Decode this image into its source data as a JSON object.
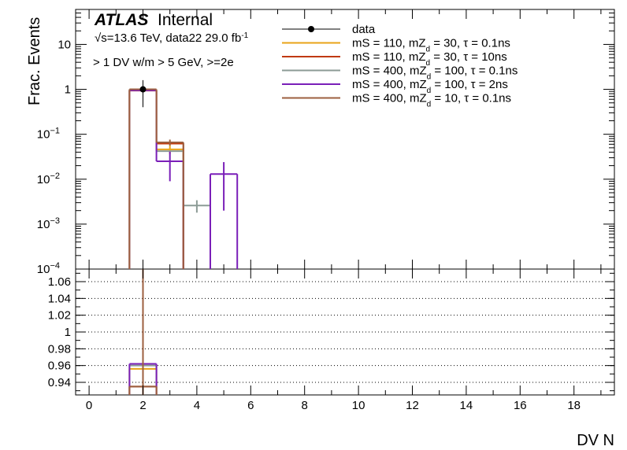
{
  "chart_data": {
    "type": "histogram",
    "atlas_label": "ATLAS",
    "atlas_sublabel": "Internal",
    "energy_label_prefix": "√s=13.6 TeV, data22 29.0 fb",
    "energy_label_sup": "-1",
    "selection_label": "> 1 DV w/m > 5 GeV, >=2e",
    "xlabel": "DV N",
    "ylabel": "Frac. Events",
    "xlim": [
      -0.5,
      19.5
    ],
    "x_ticks": [
      0,
      2,
      4,
      6,
      8,
      10,
      12,
      14,
      16,
      18
    ],
    "log_y": true,
    "ylim_top": [
      0.0001,
      60
    ],
    "y_ticks_top": [
      {
        "value": 10,
        "base": "10",
        "exp": ""
      },
      {
        "value": 1,
        "base": "1",
        "exp": ""
      },
      {
        "value": 0.1,
        "base": "10",
        "exp": "−1"
      },
      {
        "value": 0.01,
        "base": "10",
        "exp": "−2"
      },
      {
        "value": 0.001,
        "base": "10",
        "exp": "−3"
      },
      {
        "value": 0.0001,
        "base": "10",
        "exp": "−4"
      }
    ],
    "ylim_bottom": [
      0.925,
      1.075
    ],
    "y_ticks_bottom": [
      0.94,
      0.96,
      0.98,
      1,
      1.02,
      1.04,
      1.06
    ],
    "legend_position": "top-right",
    "data": {
      "name": "data",
      "points": [
        {
          "x": 2,
          "y": 1.0,
          "err_low": 0.6,
          "err_high": 0.6
        }
      ]
    },
    "series": [
      {
        "name_parts": [
          "mS = 110, mZ",
          "d",
          " = 30, ",
          "τ",
          " = 0.1ns"
        ],
        "color": "#e8a317",
        "bins": [
          {
            "x": 2,
            "y": 0.95
          },
          {
            "x": 3,
            "y": 0.046,
            "err": 0.01
          }
        ],
        "ratio": [
          {
            "x": 2,
            "y": 0.956
          }
        ]
      },
      {
        "name_parts": [
          "mS = 110, mZ",
          "d",
          " = 30, ",
          "τ",
          " = 10ns"
        ],
        "color": "#c0390b",
        "bins": [
          {
            "x": 2,
            "y": 0.94
          },
          {
            "x": 3,
            "y": 0.062
          }
        ],
        "ratio": [
          {
            "x": 2,
            "y": 0.935
          }
        ]
      },
      {
        "name_parts": [
          "mS = 400, mZ",
          "d",
          " = 100, ",
          "τ",
          " = 0.1ns"
        ],
        "color": "#8c9b96",
        "bins": [
          {
            "x": 2,
            "y": 0.97
          },
          {
            "x": 3,
            "y": 0.042
          },
          {
            "x": 4,
            "y": 0.0026,
            "err": 0.0008
          }
        ],
        "ratio": [
          {
            "x": 2,
            "y": 0.96
          }
        ]
      },
      {
        "name_parts": [
          "mS = 400, mZ",
          "d",
          " = 100, ",
          "τ",
          " = 2ns"
        ],
        "color": "#7a1fb8",
        "bins": [
          {
            "x": 2,
            "y": 0.95
          },
          {
            "x": 3,
            "y": 0.025,
            "err": 0.016
          },
          {
            "x": 5,
            "y": 0.013,
            "err": 0.011
          }
        ],
        "ratio": [
          {
            "x": 2,
            "y": 0.962
          }
        ]
      },
      {
        "name_parts": [
          "mS = 400, mZ",
          "d",
          " = 10, ",
          "τ",
          " = 0.1ns"
        ],
        "color": "#9c5f3f",
        "bins": [
          {
            "x": 2,
            "y": 1.0
          },
          {
            "x": 3,
            "y": 0.066,
            "err": 0.01
          }
        ],
        "ratio": [
          {
            "x": 2,
            "y": 0.935
          }
        ]
      }
    ]
  }
}
